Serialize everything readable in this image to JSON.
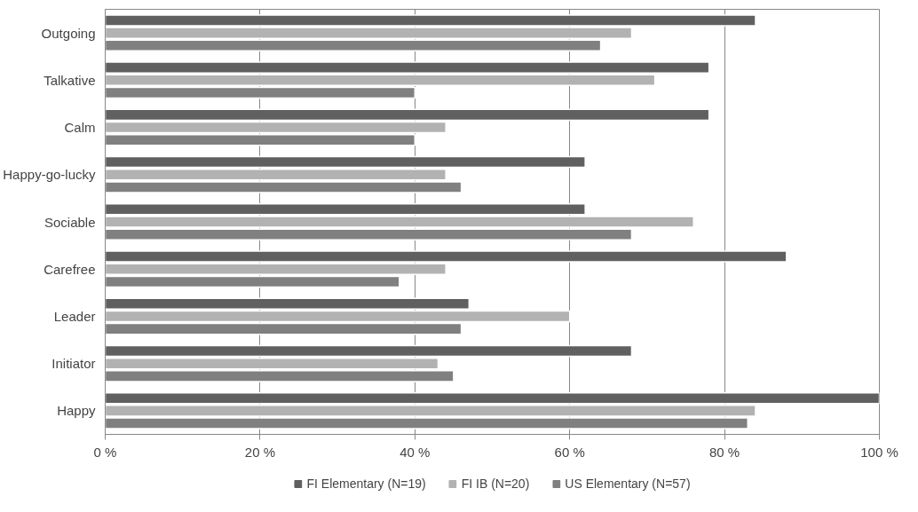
{
  "chart_data": {
    "type": "bar",
    "orientation": "horizontal",
    "categories": [
      "Outgoing",
      "Talkative",
      "Calm",
      "Happy-go-lucky",
      "Sociable",
      "Carefree",
      "Leader",
      "Initiator",
      "Happy"
    ],
    "series": [
      {
        "name": "FI Elementary (N=19)",
        "color": "#606060",
        "values": [
          84,
          78,
          78,
          62,
          62,
          88,
          47,
          68,
          100
        ]
      },
      {
        "name": "FI IB (N=20)",
        "color": "#b2b2b2",
        "values": [
          68,
          71,
          44,
          44,
          76,
          44,
          60,
          43,
          84
        ]
      },
      {
        "name": "US Elementary (N=57)",
        "color": "#808080",
        "values": [
          64,
          40,
          40,
          46,
          68,
          38,
          46,
          45,
          83
        ]
      }
    ],
    "xlim": [
      0,
      100
    ],
    "xticks": [
      {
        "value": 0,
        "label": "0 %"
      },
      {
        "value": 20,
        "label": "20 %"
      },
      {
        "value": 40,
        "label": "40 %"
      },
      {
        "value": 60,
        "label": "60 %"
      },
      {
        "value": 80,
        "label": "80 %"
      },
      {
        "value": 100,
        "label": "100 %"
      }
    ],
    "grid": "x",
    "legend": "bottom"
  }
}
